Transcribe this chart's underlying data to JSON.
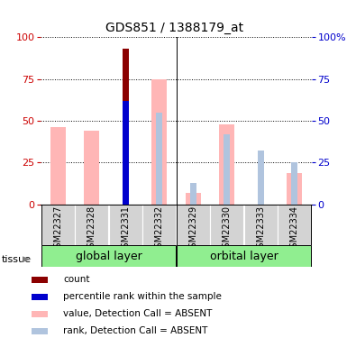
{
  "title": "GDS851 / 1388179_at",
  "samples": [
    "GSM22327",
    "GSM22328",
    "GSM22331",
    "GSM22332",
    "GSM22329",
    "GSM22330",
    "GSM22333",
    "GSM22334"
  ],
  "count_values": [
    0,
    0,
    93,
    0,
    0,
    0,
    0,
    0
  ],
  "percentile_values": [
    0,
    0,
    62,
    0,
    0,
    0,
    0,
    0
  ],
  "value_absent": [
    46,
    44,
    0,
    75,
    7,
    48,
    0,
    19
  ],
  "rank_absent": [
    0,
    0,
    0,
    55,
    13,
    42,
    32,
    25
  ],
  "count_color": "#8b0000",
  "percentile_color": "#0000cd",
  "value_absent_color": "#ffb6b6",
  "rank_absent_color": "#b0c4de",
  "left_tick_color": "#cc0000",
  "right_tick_color": "#0000cc",
  "yticks": [
    0,
    25,
    50,
    75,
    100
  ],
  "legend_items": [
    {
      "label": "count",
      "color": "#8b0000"
    },
    {
      "label": "percentile rank within the sample",
      "color": "#0000cd"
    },
    {
      "label": "value, Detection Call = ABSENT",
      "color": "#ffb6b6"
    },
    {
      "label": "rank, Detection Call = ABSENT",
      "color": "#b0c4de"
    }
  ]
}
